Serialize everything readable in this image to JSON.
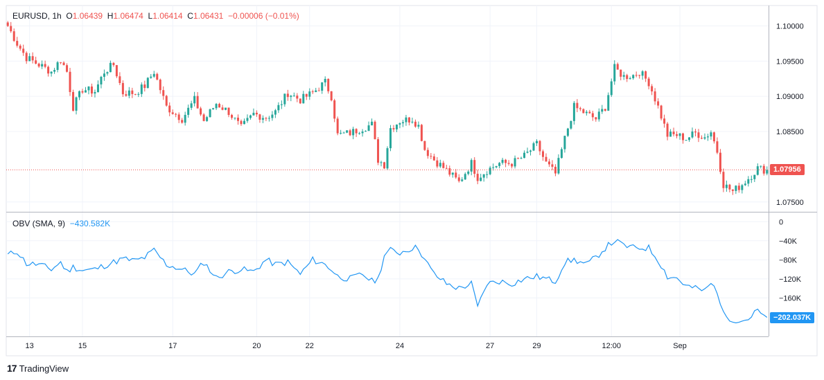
{
  "header": {
    "symbol": "EURUSD",
    "interval": "1h",
    "open_label": "O",
    "open": "1.06439",
    "high_label": "H",
    "high": "1.06474",
    "low_label": "L",
    "low": "1.06414",
    "close_label": "C",
    "close": "1.06431",
    "change": "−0.00006 (−0.01%)"
  },
  "obv_header": {
    "label": "OBV (SMA, 9)",
    "value": "−430.582K"
  },
  "branding": {
    "logo": "17",
    "name": "TradingView"
  },
  "colors": {
    "up": "#26a69a",
    "down": "#ef5350",
    "obv": "#2196f3",
    "grid": "#f0f3fa",
    "border": "#b2b5be"
  },
  "chart_data": [
    {
      "type": "candlestick",
      "title": "EURUSD, 1h",
      "ylim": [
        1.0738,
        1.1025
      ],
      "price_ticks": [
        {
          "value": 1.1,
          "label": "1.10000"
        },
        {
          "value": 1.095,
          "label": "1.09500"
        },
        {
          "value": 1.09,
          "label": "1.09000"
        },
        {
          "value": 1.085,
          "label": "1.08500"
        },
        {
          "value": 1.075,
          "label": "1.07500"
        }
      ],
      "last_price": {
        "value": 1.07956,
        "label": "1.07956"
      },
      "x_ticks": [
        {
          "index": 7,
          "label": "13"
        },
        {
          "index": 24,
          "label": "15"
        },
        {
          "index": 53,
          "label": "17"
        },
        {
          "index": 80,
          "label": "20"
        },
        {
          "index": 97,
          "label": "22"
        },
        {
          "index": 126,
          "label": "24"
        },
        {
          "index": 155,
          "label": "27"
        },
        {
          "index": 170,
          "label": "29"
        },
        {
          "index": 194,
          "label": "12:00"
        },
        {
          "index": 216,
          "label": "Sep"
        }
      ],
      "anchors": [
        [
          0,
          1.1
        ],
        [
          3,
          1.0975
        ],
        [
          6,
          1.0955
        ],
        [
          10,
          1.0945
        ],
        [
          14,
          1.0935
        ],
        [
          17,
          1.0952
        ],
        [
          19,
          1.0935
        ],
        [
          21,
          1.0885
        ],
        [
          24,
          1.091
        ],
        [
          28,
          1.0907
        ],
        [
          31,
          1.0935
        ],
        [
          34,
          1.0945
        ],
        [
          37,
          1.0905
        ],
        [
          41,
          1.0905
        ],
        [
          44,
          1.0915
        ],
        [
          47,
          1.0935
        ],
        [
          51,
          1.0885
        ],
        [
          56,
          1.0868
        ],
        [
          60,
          1.0895
        ],
        [
          63,
          1.0865
        ],
        [
          67,
          1.089
        ],
        [
          71,
          1.0878
        ],
        [
          75,
          1.0855
        ],
        [
          79,
          1.0875
        ],
        [
          83,
          1.087
        ],
        [
          86,
          1.0878
        ],
        [
          90,
          1.0905
        ],
        [
          94,
          1.0895
        ],
        [
          98,
          1.0905
        ],
        [
          102,
          1.092
        ],
        [
          104,
          1.09
        ],
        [
          106,
          1.0845
        ],
        [
          110,
          1.0848
        ],
        [
          114,
          1.0855
        ],
        [
          117,
          1.086
        ],
        [
          119,
          1.081
        ],
        [
          121,
          1.0803
        ],
        [
          123,
          1.0855
        ],
        [
          126,
          1.0865
        ],
        [
          130,
          1.0868
        ],
        [
          132,
          1.0858
        ],
        [
          134,
          1.0825
        ],
        [
          137,
          1.081
        ],
        [
          141,
          1.0795
        ],
        [
          145,
          1.0778
        ],
        [
          149,
          1.0805
        ],
        [
          151,
          1.0785
        ],
        [
          154,
          1.0795
        ],
        [
          158,
          1.0805
        ],
        [
          162,
          1.0805
        ],
        [
          166,
          1.0815
        ],
        [
          170,
          1.0832
        ],
        [
          173,
          1.0805
        ],
        [
          176,
          1.079
        ],
        [
          179,
          1.084
        ],
        [
          182,
          1.0885
        ],
        [
          186,
          1.0875
        ],
        [
          189,
          1.0868
        ],
        [
          192,
          1.0885
        ],
        [
          195,
          1.094
        ],
        [
          198,
          1.0928
        ],
        [
          201,
          1.093
        ],
        [
          203,
          1.0935
        ],
        [
          206,
          1.092
        ],
        [
          209,
          1.0885
        ],
        [
          212,
          1.0845
        ],
        [
          215,
          1.0845
        ],
        [
          218,
          1.084
        ],
        [
          221,
          1.0848
        ],
        [
          224,
          1.0842
        ],
        [
          226,
          1.085
        ],
        [
          228,
          1.0822
        ],
        [
          230,
          1.0775
        ],
        [
          233,
          1.0765
        ],
        [
          236,
          1.0775
        ],
        [
          239,
          1.0788
        ],
        [
          241,
          1.0798
        ],
        [
          243,
          1.0796
        ]
      ]
    },
    {
      "type": "line",
      "title": "OBV (SMA, 9)",
      "ylim": [
        -232,
        12
      ],
      "y_ticks": [
        {
          "value": 0,
          "label": "0"
        },
        {
          "value": -40,
          "label": "−40K"
        },
        {
          "value": -80,
          "label": "−80K"
        },
        {
          "value": -120,
          "label": "−120K"
        },
        {
          "value": -160,
          "label": "−160K"
        }
      ],
      "last_value": {
        "value": -202.037,
        "label": "−202.037K"
      },
      "anchors": [
        [
          0,
          -70
        ],
        [
          3,
          -62
        ],
        [
          6,
          -88
        ],
        [
          10,
          -90
        ],
        [
          14,
          -100
        ],
        [
          17,
          -85
        ],
        [
          19,
          -105
        ],
        [
          21,
          -95
        ],
        [
          24,
          -102
        ],
        [
          28,
          -100
        ],
        [
          31,
          -92
        ],
        [
          34,
          -85
        ],
        [
          37,
          -78
        ],
        [
          41,
          -82
        ],
        [
          44,
          -75
        ],
        [
          47,
          -60
        ],
        [
          51,
          -90
        ],
        [
          56,
          -100
        ],
        [
          60,
          -110
        ],
        [
          63,
          -85
        ],
        [
          67,
          -118
        ],
        [
          71,
          -105
        ],
        [
          75,
          -100
        ],
        [
          79,
          -105
        ],
        [
          83,
          -80
        ],
        [
          86,
          -90
        ],
        [
          90,
          -85
        ],
        [
          94,
          -110
        ],
        [
          98,
          -80
        ],
        [
          102,
          -90
        ],
        [
          104,
          -100
        ],
        [
          106,
          -115
        ],
        [
          110,
          -120
        ],
        [
          114,
          -110
        ],
        [
          117,
          -125
        ],
        [
          119,
          -120
        ],
        [
          121,
          -70
        ],
        [
          123,
          -60
        ],
        [
          126,
          -65
        ],
        [
          130,
          -55
        ],
        [
          132,
          -55
        ],
        [
          134,
          -80
        ],
        [
          137,
          -110
        ],
        [
          141,
          -130
        ],
        [
          145,
          -140
        ],
        [
          149,
          -130
        ],
        [
          151,
          -180
        ],
        [
          154,
          -130
        ],
        [
          158,
          -125
        ],
        [
          162,
          -130
        ],
        [
          166,
          -120
        ],
        [
          170,
          -115
        ],
        [
          173,
          -120
        ],
        [
          176,
          -125
        ],
        [
          179,
          -85
        ],
        [
          182,
          -80
        ],
        [
          186,
          -90
        ],
        [
          189,
          -75
        ],
        [
          192,
          -55
        ],
        [
          195,
          -40
        ],
        [
          198,
          -50
        ],
        [
          201,
          -55
        ],
        [
          203,
          -55
        ],
        [
          206,
          -55
        ],
        [
          209,
          -80
        ],
        [
          212,
          -115
        ],
        [
          215,
          -118
        ],
        [
          218,
          -135
        ],
        [
          221,
          -140
        ],
        [
          224,
          -145
        ],
        [
          226,
          -130
        ],
        [
          228,
          -145
        ],
        [
          230,
          -195
        ],
        [
          233,
          -205
        ],
        [
          236,
          -208
        ],
        [
          239,
          -200
        ],
        [
          241,
          -185
        ],
        [
          243,
          -202
        ]
      ]
    }
  ]
}
